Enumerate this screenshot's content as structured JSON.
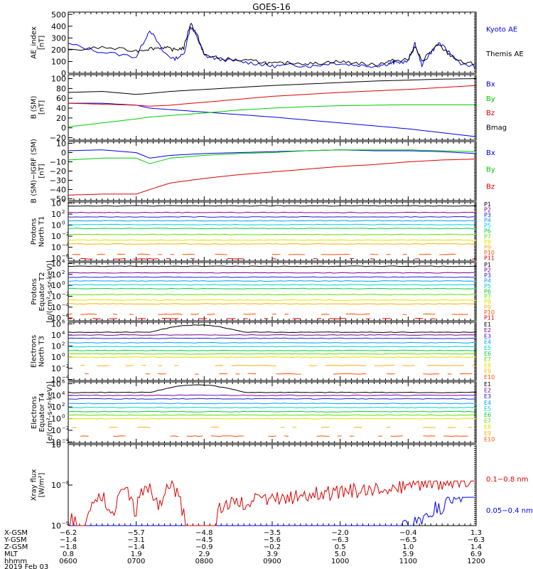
{
  "title": "GOES-16",
  "colors": {
    "black": "#000000",
    "blue": "#0000ee",
    "green": "#00cc00",
    "red": "#dd0000",
    "p_channels": [
      "#000000",
      "#7a0099",
      "#2020cc",
      "#00a0ff",
      "#00d0d0",
      "#00d040",
      "#60e000",
      "#e0e000",
      "#ffb000",
      "#ff5000",
      "#dd0000"
    ],
    "e_channels": [
      "#000000",
      "#7a0099",
      "#2020cc",
      "#00a0ff",
      "#00d0d0",
      "#00d040",
      "#60e000",
      "#e0e000",
      "#ffb000",
      "#ff5000",
      "#dd0000"
    ]
  },
  "chart_data": [
    {
      "type": "line",
      "id": "ae",
      "ylabel": [
        "AE_index",
        "[nT]"
      ],
      "yticks": [
        "500",
        "400",
        "300",
        "200",
        "100",
        "0"
      ],
      "ylim": [
        0,
        520
      ],
      "legend": [
        {
          "name": "Kyoto AE",
          "color": "#0000ee"
        },
        {
          "name": "Themis AE",
          "color": "#000000"
        }
      ],
      "x_hours": [
        6.0,
        6.5,
        7.0,
        7.2,
        7.4,
        7.55,
        7.7,
        7.8,
        7.9,
        8.0,
        8.2,
        8.5,
        8.8,
        9.0,
        9.3,
        9.6,
        9.9,
        10.2,
        10.5,
        10.7,
        10.8,
        11.0,
        11.1,
        11.2,
        11.3,
        11.45,
        11.6,
        11.8,
        12.0
      ],
      "series": [
        {
          "name": "Kyoto AE",
          "color": "#0000ee",
          "values": [
            250,
            180,
            140,
            370,
            180,
            120,
            160,
            400,
            300,
            150,
            120,
            100,
            80,
            60,
            70,
            60,
            90,
            70,
            60,
            80,
            90,
            100,
            250,
            70,
            150,
            260,
            180,
            70,
            60
          ]
        },
        {
          "name": "Themis AE",
          "color": "#000000",
          "values": [
            190,
            220,
            190,
            210,
            220,
            200,
            215,
            430,
            320,
            160,
            130,
            110,
            100,
            80,
            90,
            80,
            100,
            90,
            70,
            100,
            110,
            120,
            230,
            100,
            170,
            240,
            160,
            90,
            80
          ]
        }
      ]
    },
    {
      "type": "line",
      "id": "bsm",
      "ylabel": [
        "B (SM)",
        "[nT]"
      ],
      "yticks": [
        "100",
        "80",
        "60",
        "40",
        "20",
        "0",
        "−20"
      ],
      "ylim": [
        -25,
        108
      ],
      "legend": [
        {
          "name": "Bx",
          "color": "#0000ee"
        },
        {
          "name": "By",
          "color": "#00cc00"
        },
        {
          "name": "Bz",
          "color": "#dd0000"
        },
        {
          "name": "Bmag",
          "color": "#000000"
        }
      ],
      "x_hours": [
        6.0,
        6.5,
        7.0,
        7.2,
        7.5,
        8.0,
        8.5,
        9.0,
        9.5,
        10.0,
        10.5,
        11.0,
        11.5,
        12.0
      ],
      "series": [
        {
          "name": "Bx",
          "color": "#0000ee",
          "values": [
            50,
            50,
            46,
            40,
            37,
            32,
            27,
            22,
            16,
            10,
            4,
            -2,
            -10,
            -18
          ]
        },
        {
          "name": "By",
          "color": "#00cc00",
          "values": [
            2,
            10,
            18,
            22,
            25,
            30,
            36,
            40,
            43,
            45,
            46,
            47,
            47,
            47
          ]
        },
        {
          "name": "Bz",
          "color": "#dd0000",
          "values": [
            50,
            48,
            46,
            44,
            46,
            52,
            58,
            64,
            68,
            72,
            75,
            78,
            82,
            86
          ]
        },
        {
          "name": "Bmag",
          "color": "#000000",
          "values": [
            72,
            74,
            68,
            70,
            74,
            78,
            82,
            86,
            89,
            92,
            95,
            97,
            99,
            100
          ]
        }
      ]
    },
    {
      "type": "line",
      "id": "bigrf",
      "ylabel": [
        "B (SM)−IGRF (SM)",
        "[nT]"
      ],
      "yticks": [
        "10",
        "0",
        "−10",
        "−20",
        "−30",
        "−40",
        "−50"
      ],
      "ylim": [
        -52,
        12
      ],
      "legend": [
        {
          "name": "Bx",
          "color": "#0000ee"
        },
        {
          "name": "By",
          "color": "#00cc00"
        },
        {
          "name": "Bz",
          "color": "#dd0000"
        }
      ],
      "x_hours": [
        6.0,
        6.5,
        7.0,
        7.2,
        7.5,
        8.0,
        8.5,
        9.0,
        9.5,
        10.0,
        10.5,
        11.0,
        11.5,
        12.0
      ],
      "series": [
        {
          "name": "Bx",
          "color": "#0000ee",
          "values": [
            2,
            3,
            0,
            -6,
            -3,
            -1,
            0,
            1,
            2,
            3,
            2,
            2,
            1,
            -1
          ]
        },
        {
          "name": "By",
          "color": "#00cc00",
          "values": [
            -8,
            -6,
            -6,
            -12,
            -6,
            -3,
            -1,
            0,
            2,
            3,
            3,
            3,
            2,
            1
          ]
        },
        {
          "name": "Bz",
          "color": "#dd0000",
          "values": [
            -46,
            -45,
            -45,
            -40,
            -33,
            -28,
            -24,
            -21,
            -18,
            -15,
            -13,
            -10,
            -8,
            -7
          ]
        }
      ]
    },
    {
      "type": "line",
      "id": "pn",
      "ylabel": [
        "Protons",
        "North T1"
      ],
      "ytick_exps": [
        "4",
        "2",
        "0",
        "−2",
        "−4",
        "−6"
      ],
      "ylog": [
        -6.5,
        4.2
      ],
      "channels": [
        "P1",
        "P2",
        "P3",
        "P4",
        "P5",
        "P6",
        "P7",
        "P8",
        "P9",
        "P10",
        "P11"
      ],
      "levels": [
        3.5,
        2.3,
        1.5,
        0.8,
        0.1,
        -0.6,
        -1.7,
        -2.7,
        -3.4,
        -5.3,
        -6.1
      ]
    },
    {
      "type": "line",
      "id": "pe",
      "ylabel": [
        "Protons",
        "Equator T2",
        "[p/(cm²-s-sr-keV)]"
      ],
      "ytick_exps": [
        "4",
        "2",
        "0",
        "−2",
        "−4",
        "−6"
      ],
      "ylog": [
        -6.5,
        4.2
      ],
      "channels": [
        "P1",
        "P2",
        "P3",
        "P4",
        "P5",
        "P6",
        "P7",
        "P8",
        "P9",
        "P10",
        "P11"
      ],
      "levels": [
        3.5,
        2.3,
        1.5,
        0.8,
        0.1,
        -0.6,
        -1.7,
        -2.7,
        -3.4,
        -5.3,
        -6.1
      ]
    },
    {
      "type": "line",
      "id": "en",
      "ylabel": [
        "Electrons",
        "North T3"
      ],
      "ytick_exps": [
        "6",
        "4",
        "2",
        "0",
        "−2",
        "−4"
      ],
      "ylog": [
        -4.2,
        6.3
      ],
      "channels": [
        "E1",
        "E2",
        "E3",
        "E4",
        "E5",
        "E6",
        "E7",
        "E8",
        "E9",
        "E10"
      ],
      "levels": [
        4.5,
        4.0,
        3.4,
        2.6,
        1.9,
        1.2,
        0.6,
        0.0,
        -1.5,
        -3.0
      ]
    },
    {
      "type": "line",
      "id": "ee",
      "ylabel": [
        "Electrons",
        "Equator T4",
        "[e/(cm²-s-sr-keV)]"
      ],
      "ytick_exps": [
        "6",
        "4",
        "2",
        "0",
        "−2",
        "−4"
      ],
      "ylog": [
        -4.2,
        6.3
      ],
      "channels": [
        "E1",
        "E2",
        "E3",
        "E4",
        "E5",
        "E6",
        "E7",
        "E8",
        "E9",
        "E10"
      ],
      "levels": [
        4.5,
        4.0,
        3.4,
        2.6,
        1.9,
        1.2,
        0.6,
        0.0,
        -1.5,
        -3.0
      ]
    },
    {
      "type": "line",
      "id": "xray",
      "ylabel": [
        "Xray flux",
        "[W/m²]"
      ],
      "ytick_exps": [
        "−7",
        "−8",
        "−9"
      ],
      "ylog": [
        -9,
        -7
      ],
      "legend": [
        {
          "name": "0.1−0.8 nm",
          "color": "#dd0000"
        },
        {
          "name": "0.05−0.4 nm",
          "color": "#0000ee"
        }
      ]
    }
  ],
  "xaxis": {
    "rows": [
      {
        "label": "X-GSM",
        "values": [
          "−6.2",
          "−5.7",
          "−4.8",
          "−3.5",
          "−2.0",
          "−0.4",
          "1.3"
        ]
      },
      {
        "label": "Y-GSM",
        "values": [
          "−1.4",
          "−3.1",
          "−4.5",
          "−5.6",
          "−6.3",
          "−6.5",
          "−6.3"
        ]
      },
      {
        "label": "Z-GSM",
        "values": [
          "−1.8",
          "−1.4",
          "−0.9",
          "−0.2",
          "0.5",
          "1.0",
          "1.4"
        ]
      },
      {
        "label": "MLT",
        "values": [
          "0.8",
          "1.9",
          "2.9",
          "3.9",
          "5.0",
          "5.9",
          "6.9"
        ]
      },
      {
        "label": "hhmm",
        "values": [
          "0600",
          "0700",
          "0800",
          "0900",
          "1000",
          "1100",
          "1200"
        ]
      }
    ],
    "date": "2019 Feb 03",
    "hours": [
      6,
      7,
      8,
      9,
      10,
      11,
      12
    ]
  }
}
